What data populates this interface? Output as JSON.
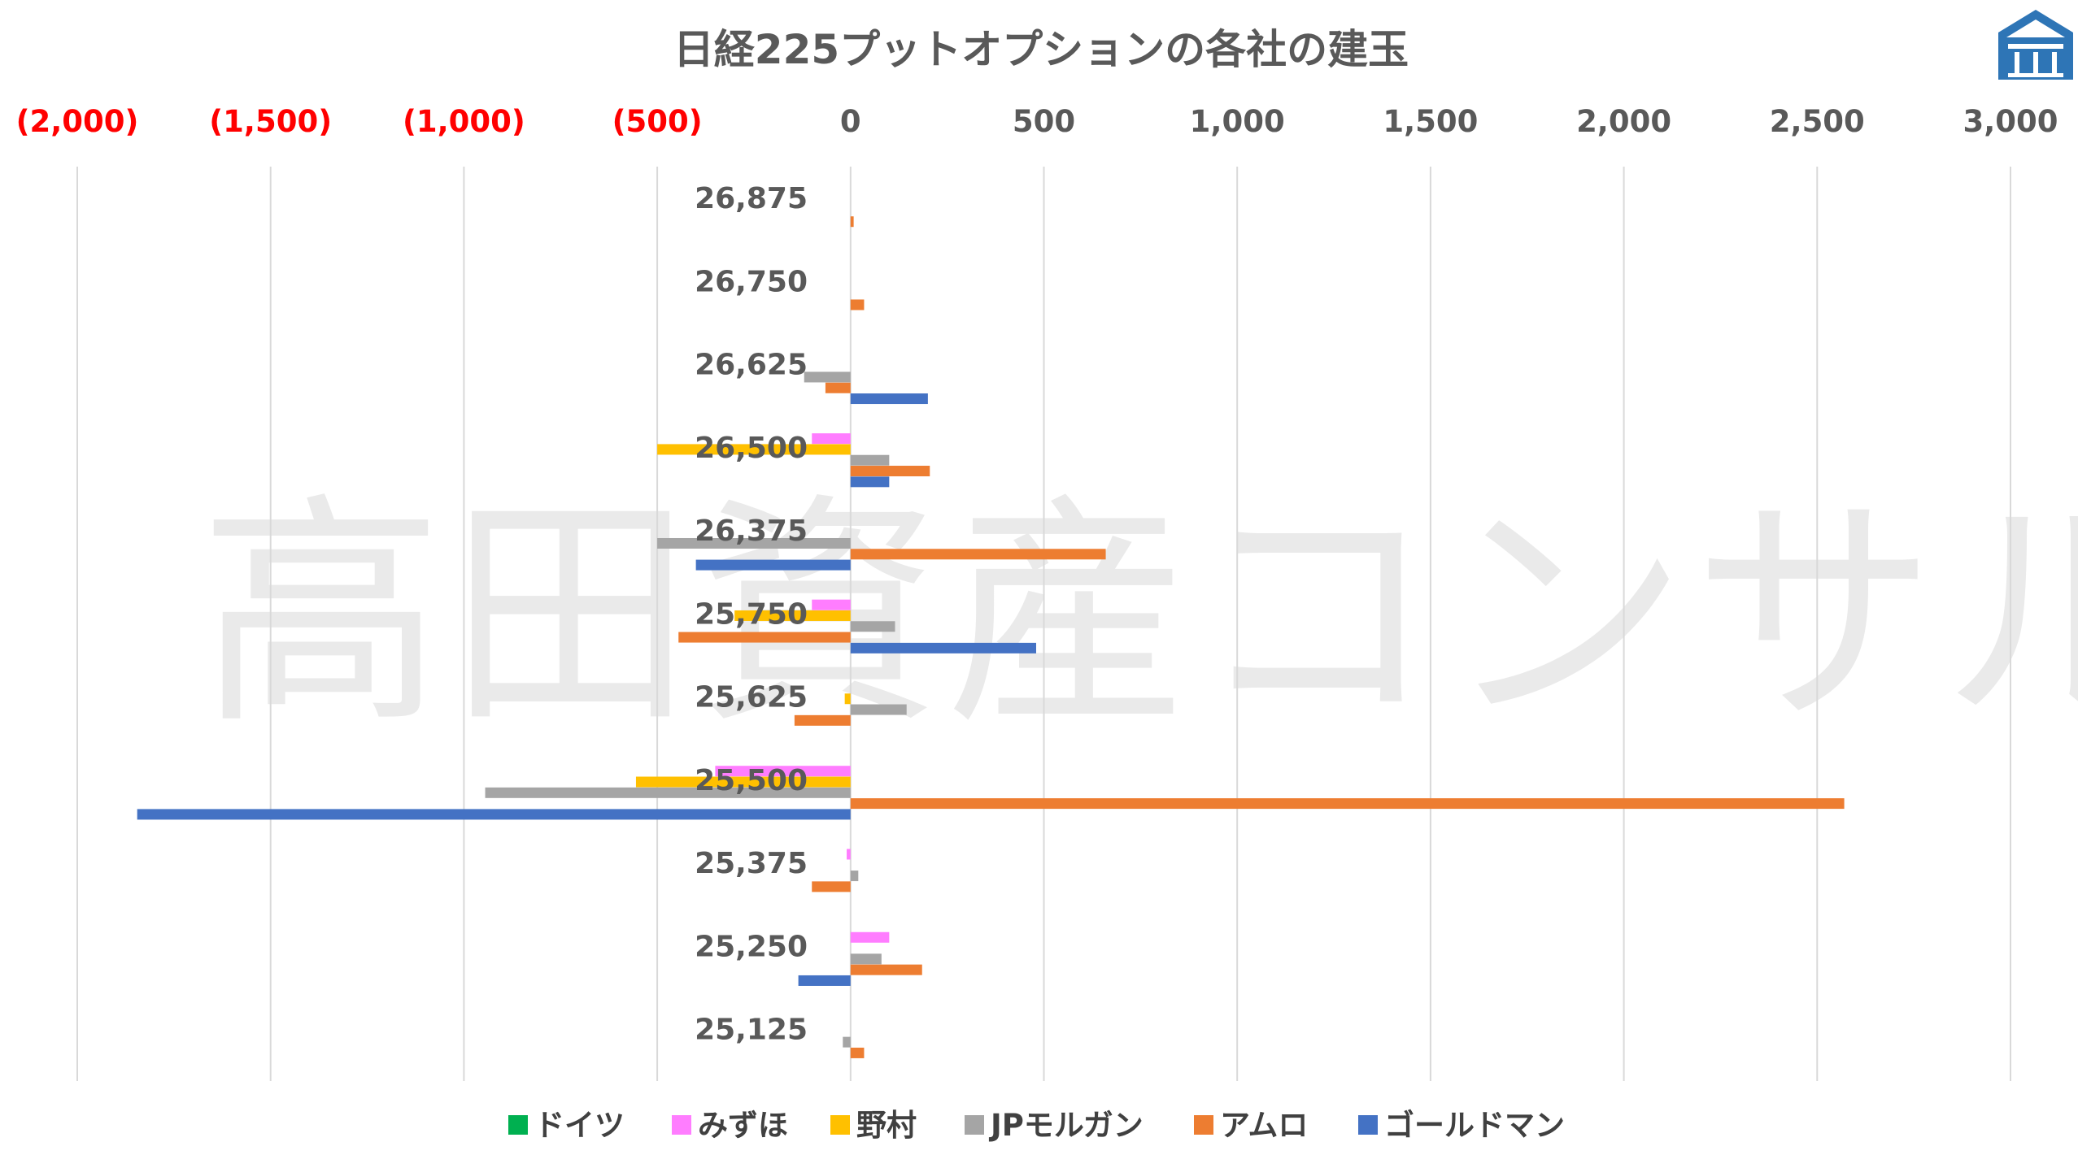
{
  "chart_data": {
    "type": "bar",
    "orientation": "horizontal",
    "title": "日経225プットオプションの各社の建玉",
    "watermark": "高田資産コンサル",
    "categories": [
      "26,875",
      "26,750",
      "26,625",
      "26,500",
      "26,375",
      "25,750",
      "25,625",
      "25,500",
      "25,375",
      "25,250",
      "25,125"
    ],
    "series": [
      {
        "name": "ドイツ",
        "color": "#00b050",
        "values": [
          0,
          0,
          0,
          0,
          0,
          0,
          0,
          0,
          0,
          0,
          0
        ]
      },
      {
        "name": "みずほ",
        "color": "#ff7dff",
        "values": [
          0,
          0,
          0,
          -100,
          0,
          -100,
          0,
          -350,
          -10,
          100,
          0
        ]
      },
      {
        "name": "野村",
        "color": "#ffc000",
        "values": [
          0,
          0,
          0,
          -500,
          0,
          -300,
          -15,
          -555,
          0,
          0,
          0
        ]
      },
      {
        "name": "JPモルガン",
        "color": "#a5a5a5",
        "values": [
          0,
          0,
          -120,
          100,
          -500,
          115,
          145,
          -945,
          20,
          80,
          -20
        ]
      },
      {
        "name": "アムロ",
        "color": "#ed7d31",
        "values": [
          8,
          35,
          -65,
          205,
          660,
          -445,
          -145,
          2570,
          -100,
          185,
          35
        ]
      },
      {
        "name": "ゴールドマン",
        "color": "#4472c4",
        "values": [
          0,
          0,
          200,
          100,
          -400,
          480,
          0,
          -1845,
          0,
          -135,
          0
        ]
      }
    ],
    "xlim": [
      -2000,
      3000
    ],
    "xticks": [
      -2000,
      -1500,
      -1000,
      -500,
      0,
      500,
      1000,
      1500,
      2000,
      2500,
      3000
    ],
    "xtick_labels": [
      "(2,000)",
      "(1,500)",
      "(1,000)",
      "(500)",
      "0",
      "500",
      "1,000",
      "1,500",
      "2,000",
      "2,500",
      "3,000"
    ],
    "negative_tick_color": "#ff0000",
    "positive_tick_color": "#595959",
    "gridlines": true,
    "legend_position": "bottom"
  }
}
